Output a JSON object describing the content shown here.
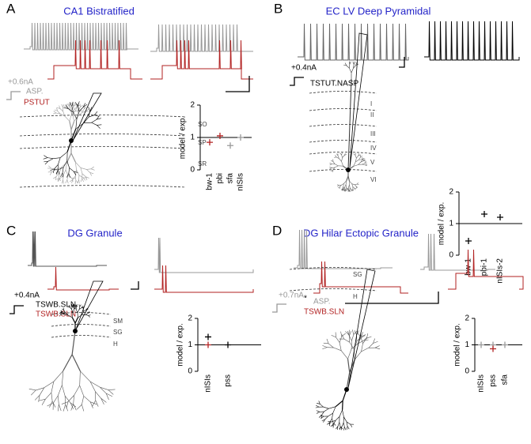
{
  "panels": [
    {
      "label": "A",
      "title": "CA1 Bistratified",
      "stimulus": [
        "+0.6nA",
        "ASP.",
        "PSTUT"
      ],
      "layers": [
        "SO",
        "SP",
        "SR"
      ],
      "plot": {
        "y_label": "model / exp.",
        "ylim": [
          0,
          2
        ],
        "yticks": [
          0,
          1,
          2
        ],
        "reference_line": 1,
        "categories": [
          "bw-1",
          "pbi",
          "sfa",
          "nISIs"
        ],
        "series": [
          {
            "color": "#b22222",
            "values": [
              0.85,
              1.05,
              null,
              null
            ]
          },
          {
            "color": "#999999",
            "values": [
              null,
              null,
              0.75,
              1.0
            ]
          }
        ]
      }
    },
    {
      "label": "B",
      "title": "EC LV Deep Pyramidal",
      "stimulus": [
        "+0.4nA",
        "TSTUT.NASP"
      ],
      "layers": [
        "I",
        "II",
        "III",
        "IV",
        "V",
        "VI"
      ],
      "plot": {
        "y_label": "model / exp.",
        "ylim": [
          0,
          2
        ],
        "yticks": [
          0,
          1,
          2
        ],
        "reference_line": 1,
        "categories": [
          "bw-1",
          "pbi-1",
          "nISIs-2"
        ],
        "series": [
          {
            "color": "#000000",
            "values": [
              0.45,
              1.3,
              1.2
            ]
          }
        ]
      }
    },
    {
      "label": "C",
      "title": "DG Granule",
      "stimulus": [
        "+0.4nA",
        "TSWB.SLN",
        "TSWB.SLN"
      ],
      "layers": [
        "SM",
        "SG",
        "H"
      ],
      "plot": {
        "y_label": "model / exp.",
        "ylim": [
          0,
          2
        ],
        "yticks": [
          0,
          1,
          2
        ],
        "reference_line": 1,
        "categories": [
          "nISIs",
          "pss"
        ],
        "series": [
          {
            "color": "#000000",
            "values": [
              1.3,
              1.0
            ]
          },
          {
            "color": "#b22222",
            "values": [
              1.0,
              null
            ]
          }
        ]
      }
    },
    {
      "label": "D",
      "title": "DG Hilar Ectopic Granule",
      "stimulus": [
        "+0.7nA",
        "*",
        "ASP.",
        "TSWB.SLN"
      ],
      "layers": [
        "SG",
        "H"
      ],
      "plot": {
        "y_label": "model / exp.",
        "ylim": [
          0,
          2
        ],
        "yticks": [
          0,
          1,
          2
        ],
        "reference_line": 1,
        "categories": [
          "nISIs",
          "pss",
          "sfa"
        ],
        "series": [
          {
            "color": "#999999",
            "values": [
              1.0,
              1.0,
              1.0
            ]
          },
          {
            "color": "#b22222",
            "values": [
              null,
              0.85,
              null
            ]
          }
        ]
      }
    }
  ]
}
